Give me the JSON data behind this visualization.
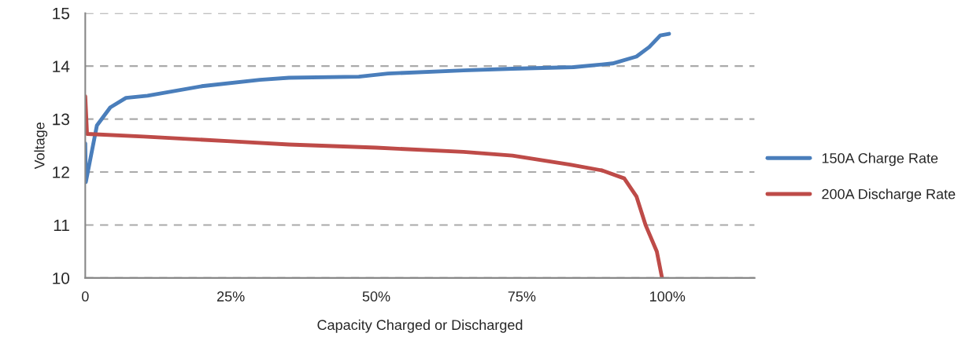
{
  "chart_data": {
    "type": "line",
    "xlabel": "Capacity Charged or Discharged",
    "ylabel": "Voltage",
    "xlim": [
      0,
      115
    ],
    "xticks": [
      0,
      {
        "value": 25,
        "label": "25%"
      },
      {
        "value": 50,
        "label": "50%"
      },
      {
        "value": 75,
        "label": "75%"
      },
      {
        "value": 100,
        "label": "100%"
      }
    ],
    "ylim": [
      10,
      15
    ],
    "yticks": [
      10,
      11,
      12,
      13,
      14,
      15
    ],
    "grid": "y",
    "legend": "right",
    "line_style": "solid",
    "marker": "none",
    "series": [
      {
        "name": "150A Charge Rate",
        "color": "#4a7ebb",
        "x": [
          0,
          0.1,
          2,
          4.3,
          7,
          10.7,
          20,
          30,
          35,
          47,
          52,
          65,
          73.4,
          83.9,
          90.6,
          94.7,
          96.9,
          98.8,
          100.3
        ],
        "values": [
          12.54,
          11.81,
          12.88,
          13.22,
          13.4,
          13.44,
          13.62,
          13.74,
          13.78,
          13.8,
          13.86,
          13.92,
          13.95,
          13.98,
          14.05,
          14.18,
          14.36,
          14.58,
          14.61
        ]
      },
      {
        "name": "200A Discharge Rate",
        "color": "#be4b48",
        "x": [
          0,
          0.3,
          10,
          25,
          35,
          50,
          65,
          73.4,
          83.3,
          88.8,
          92.6,
          94.7,
          96.3,
          98.2,
          99.1
        ],
        "values": [
          13.43,
          12.72,
          12.67,
          12.58,
          12.52,
          12.46,
          12.38,
          12.31,
          12.14,
          12.03,
          11.88,
          11.54,
          10.99,
          10.5,
          10.0
        ]
      }
    ]
  }
}
